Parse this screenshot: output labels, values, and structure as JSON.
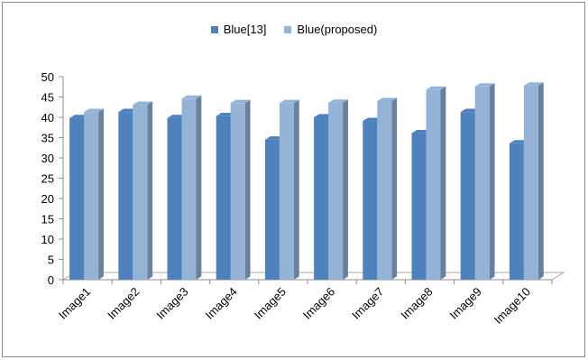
{
  "chart_data": {
    "type": "bar",
    "categories": [
      "Image1",
      "Image2",
      "Image3",
      "Image4",
      "Image5",
      "Image6",
      "Image7",
      "Image8",
      "Image9",
      "Image10"
    ],
    "series": [
      {
        "name": "Blue[13]",
        "values": [
          39.8,
          41.3,
          39.8,
          40.3,
          34.5,
          40.0,
          39.1,
          36.1,
          41.3,
          33.6
        ],
        "color": "#4f81bd"
      },
      {
        "name": "Blue(proposed)",
        "values": [
          41.3,
          43.1,
          44.6,
          43.5,
          43.5,
          43.6,
          44.0,
          46.8,
          47.6,
          47.8
        ],
        "color": "#95b3d7"
      }
    ],
    "y_ticks": [
      "0",
      "5",
      "10",
      "15",
      "20",
      "25",
      "30",
      "35",
      "40",
      "45",
      "50"
    ],
    "ylim": [
      0,
      50
    ],
    "legend_position": "top",
    "grid": false,
    "style": "3d-clustered-column"
  }
}
